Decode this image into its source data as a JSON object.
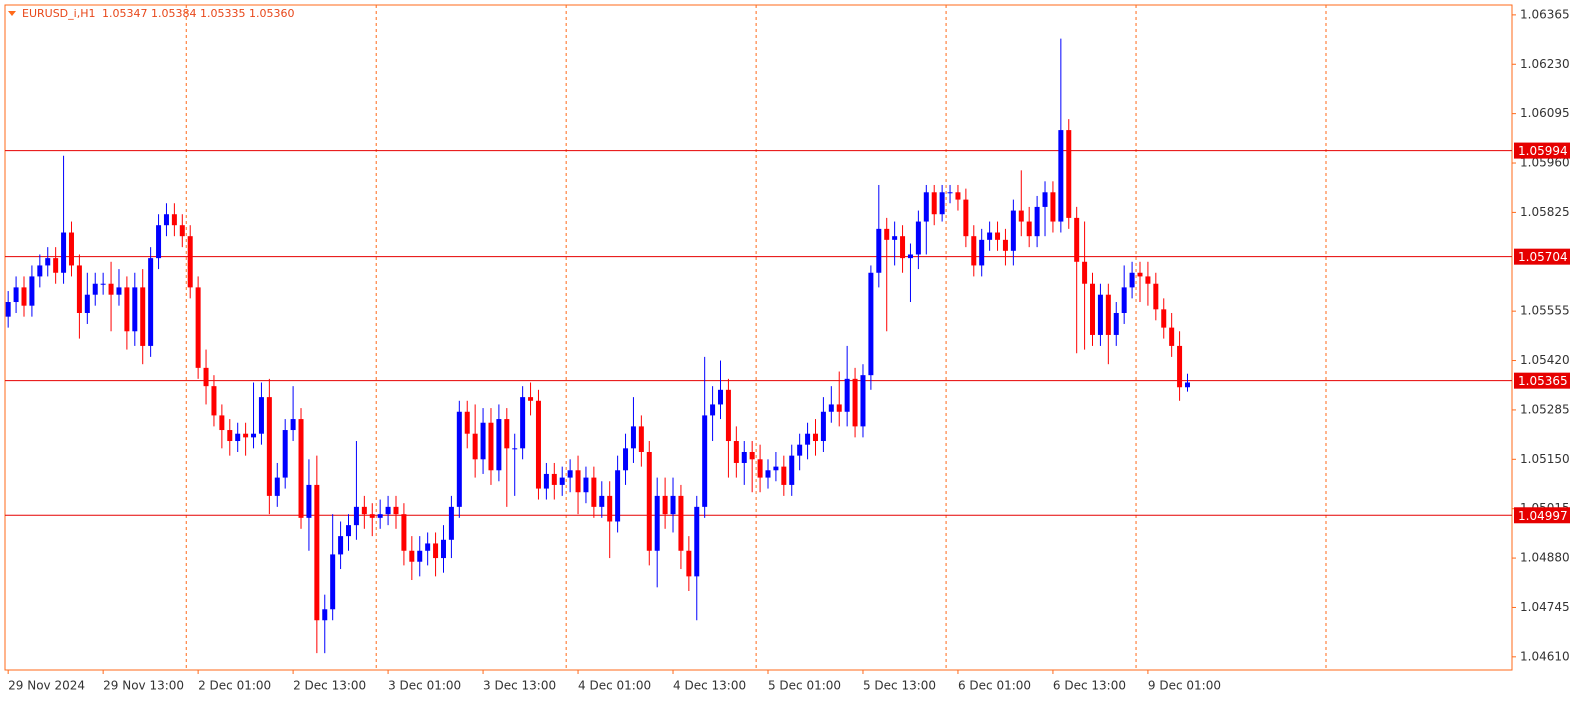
{
  "chart_data": {
    "type": "candlestick",
    "title": "EURUSD_i,H1",
    "ohlc_label": "1.05347 1.05384 1.05335 1.05360",
    "colors": {
      "up": "#0000ff",
      "down": "#ff0000",
      "frame": "#ff6a1a",
      "level": "#e60000"
    },
    "open": [
      1.0554,
      1.0558,
      1.0562,
      1.0557,
      1.0565,
      1.0568,
      1.057,
      1.0566,
      1.0577,
      1.0568,
      1.0555,
      1.056,
      1.0563,
      1.0563,
      1.056,
      1.0562,
      1.055,
      1.0562,
      1.0546,
      1.057,
      1.0579,
      1.0582,
      1.0579,
      1.0576,
      1.0562,
      1.054,
      1.0535,
      1.0527,
      1.0523,
      1.052,
      1.0522,
      1.0521,
      1.0522,
      1.0532,
      1.0505,
      1.051,
      1.0523,
      1.0526,
      1.0499,
      1.0508,
      1.0471,
      1.0474,
      1.0489,
      1.0494,
      1.0497,
      1.0502,
      1.05,
      1.0499,
      1.05,
      1.0502,
      1.05,
      1.049,
      1.0487,
      1.049,
      1.0492,
      1.0488,
      1.0493,
      1.0502,
      1.0528,
      1.0522,
      1.0515,
      1.0525,
      1.0512,
      1.0526,
      1.0518,
      1.0518,
      1.0532,
      1.0531,
      1.0507,
      1.0511,
      1.0508,
      1.051,
      1.0512,
      1.0506,
      1.051,
      1.0502,
      1.0505,
      1.0498,
      1.0512,
      1.0518,
      1.0524,
      1.0517,
      1.049,
      1.0505,
      1.05,
      1.0505,
      1.049,
      1.0483,
      1.0502,
      1.0527,
      1.053,
      1.0534,
      1.052,
      1.0514,
      1.0517,
      1.0515,
      1.051,
      1.0512,
      1.0513,
      1.0508,
      1.0516,
      1.0519,
      1.0522,
      1.052,
      1.0528,
      1.053,
      1.0528,
      1.0537,
      1.0524,
      1.0538,
      1.0566,
      1.0578,
      1.0575,
      1.0576,
      1.057,
      1.0571,
      1.058,
      1.0588,
      1.0582,
      1.0588,
      1.0588,
      1.0586,
      1.0576,
      1.0568,
      1.0575,
      1.0577,
      1.0575,
      1.0572,
      1.0583,
      1.058,
      1.0576,
      1.0584,
      1.0588,
      1.058,
      1.0605,
      1.0581,
      1.0569,
      1.0563,
      1.0549,
      1.056,
      1.0549,
      1.0555,
      1.0562,
      1.0566,
      1.0565,
      1.0563,
      1.0556,
      1.0551,
      1.0546,
      1.05347
    ],
    "high": [
      1.0561,
      1.0565,
      1.0565,
      1.0568,
      1.0571,
      1.0573,
      1.0573,
      1.0598,
      1.058,
      1.0571,
      1.0566,
      1.0566,
      1.0566,
      1.0569,
      1.0567,
      1.0565,
      1.0566,
      1.0567,
      1.0573,
      1.0582,
      1.0585,
      1.0585,
      1.0582,
      1.0579,
      1.0565,
      1.0545,
      1.0538,
      1.053,
      1.0526,
      1.0525,
      1.0525,
      1.0536,
      1.0536,
      1.0537,
      1.0514,
      1.0526,
      1.0535,
      1.0529,
      1.0515,
      1.0516,
      1.0478,
      1.05,
      1.0498,
      1.05,
      1.052,
      1.0505,
      1.0503,
      1.0504,
      1.0505,
      1.0505,
      1.0503,
      1.0494,
      1.0494,
      1.0495,
      1.0495,
      1.0497,
      1.0505,
      1.0531,
      1.0531,
      1.053,
      1.0529,
      1.0529,
      1.053,
      1.0529,
      1.0522,
      1.0535,
      1.0536,
      1.0534,
      1.0514,
      1.0514,
      1.0513,
      1.0515,
      1.0516,
      1.0513,
      1.0513,
      1.0509,
      1.0509,
      1.0516,
      1.0522,
      1.0532,
      1.0527,
      1.052,
      1.051,
      1.051,
      1.051,
      1.0508,
      1.0494,
      1.0505,
      1.0543,
      1.0535,
      1.0542,
      1.0537,
      1.0524,
      1.052,
      1.052,
      1.0519,
      1.0515,
      1.0517,
      1.0516,
      1.0519,
      1.0522,
      1.0525,
      1.0526,
      1.0532,
      1.0535,
      1.0539,
      1.0546,
      1.054,
      1.0541,
      1.0568,
      1.059,
      1.0581,
      1.058,
      1.0579,
      1.0574,
      1.0583,
      1.059,
      1.059,
      1.059,
      1.059,
      1.059,
      1.0589,
      1.0579,
      1.0578,
      1.058,
      1.058,
      1.0578,
      1.0586,
      1.0594,
      1.0584,
      1.0587,
      1.0591,
      1.0591,
      1.063,
      1.0608,
      1.0584,
      1.058,
      1.0566,
      1.0563,
      1.0563,
      1.0558,
      1.0568,
      1.0569,
      1.0569,
      1.0569,
      1.0566,
      1.0559,
      1.0555,
      1.055,
      1.05384
    ],
    "low": [
      1.0551,
      1.0555,
      1.0554,
      1.0554,
      1.0562,
      1.0565,
      1.0563,
      1.0563,
      1.0565,
      1.0548,
      1.0552,
      1.0557,
      1.056,
      1.055,
      1.0557,
      1.0545,
      1.0546,
      1.0541,
      1.0543,
      1.0567,
      1.0576,
      1.0576,
      1.0573,
      1.0559,
      1.0537,
      1.053,
      1.0524,
      1.0518,
      1.0516,
      1.0517,
      1.0516,
      1.0518,
      1.0519,
      1.05,
      1.0502,
      1.0507,
      1.052,
      1.0496,
      1.049,
      1.0462,
      1.0462,
      1.0471,
      1.0485,
      1.049,
      1.0493,
      1.0496,
      1.0494,
      1.0496,
      1.0497,
      1.0496,
      1.0486,
      1.0482,
      1.0483,
      1.0486,
      1.0483,
      1.0484,
      1.0488,
      1.0499,
      1.0518,
      1.051,
      1.0511,
      1.0508,
      1.0509,
      1.0502,
      1.0505,
      1.0515,
      1.0527,
      1.0504,
      1.0504,
      1.0504,
      1.0505,
      1.0506,
      1.05,
      1.0503,
      1.0499,
      1.0499,
      1.0488,
      1.0495,
      1.0508,
      1.0514,
      1.0513,
      1.0486,
      1.048,
      1.0496,
      1.0495,
      1.0485,
      1.0479,
      1.0471,
      1.0499,
      1.052,
      1.0526,
      1.051,
      1.051,
      1.0508,
      1.0506,
      1.0506,
      1.0507,
      1.0509,
      1.0505,
      1.0505,
      1.0512,
      1.0515,
      1.0516,
      1.0517,
      1.0525,
      1.0524,
      1.0524,
      1.0521,
      1.0521,
      1.0534,
      1.0562,
      1.055,
      1.0568,
      1.0566,
      1.0558,
      1.0567,
      1.0571,
      1.0579,
      1.058,
      1.0585,
      1.0583,
      1.0573,
      1.0565,
      1.0565,
      1.0572,
      1.0572,
      1.0568,
      1.0568,
      1.0576,
      1.0573,
      1.0573,
      1.0576,
      1.0577,
      1.0577,
      1.0578,
      1.0544,
      1.0545,
      1.0546,
      1.0546,
      1.0541,
      1.0546,
      1.0552,
      1.0559,
      1.0558,
      1.0557,
      1.0553,
      1.0548,
      1.0543,
      1.0531,
      1.05335
    ],
    "close": [
      1.0558,
      1.0562,
      1.0557,
      1.0565,
      1.0568,
      1.057,
      1.0566,
      1.0577,
      1.0568,
      1.0555,
      1.056,
      1.0563,
      1.0563,
      1.056,
      1.0562,
      1.055,
      1.0562,
      1.0546,
      1.057,
      1.0579,
      1.0582,
      1.0579,
      1.0576,
      1.0562,
      1.054,
      1.0535,
      1.0527,
      1.0523,
      1.052,
      1.0522,
      1.0521,
      1.0522,
      1.0532,
      1.0505,
      1.051,
      1.0523,
      1.0526,
      1.0499,
      1.0508,
      1.0471,
      1.0474,
      1.0489,
      1.0494,
      1.0497,
      1.0502,
      1.05,
      1.0499,
      1.05,
      1.0502,
      1.05,
      1.049,
      1.0487,
      1.049,
      1.0492,
      1.0488,
      1.0493,
      1.0502,
      1.0528,
      1.0522,
      1.0515,
      1.0525,
      1.0512,
      1.0526,
      1.0518,
      1.0518,
      1.0532,
      1.0531,
      1.0507,
      1.0511,
      1.0508,
      1.051,
      1.0512,
      1.0506,
      1.051,
      1.0502,
      1.0505,
      1.0498,
      1.0512,
      1.0518,
      1.0524,
      1.0517,
      1.049,
      1.0505,
      1.05,
      1.0505,
      1.049,
      1.0483,
      1.0502,
      1.0527,
      1.053,
      1.0534,
      1.052,
      1.0514,
      1.0517,
      1.0515,
      1.051,
      1.0512,
      1.0513,
      1.0508,
      1.0516,
      1.0519,
      1.0522,
      1.052,
      1.0528,
      1.053,
      1.0528,
      1.0537,
      1.0524,
      1.0538,
      1.0566,
      1.0578,
      1.0575,
      1.0576,
      1.057,
      1.0571,
      1.058,
      1.0588,
      1.0582,
      1.0588,
      1.0588,
      1.0586,
      1.0576,
      1.0568,
      1.0575,
      1.0577,
      1.0575,
      1.0572,
      1.0583,
      1.058,
      1.0576,
      1.0584,
      1.0588,
      1.058,
      1.0605,
      1.0581,
      1.0569,
      1.0563,
      1.0549,
      1.056,
      1.0549,
      1.0555,
      1.0562,
      1.0566,
      1.0565,
      1.0563,
      1.0556,
      1.0551,
      1.0546,
      1.05347,
      1.0536
    ],
    "levels": [
      1.05994,
      1.05704,
      1.05365,
      1.04997
    ],
    "xlim": [
      -0.4,
      190
    ],
    "xticks": [
      {
        "value": 0,
        "label": "29 Nov 2024"
      },
      {
        "value": 12,
        "label": "29 Nov 13:00"
      },
      {
        "value": 24,
        "label": "2 Dec 01:00"
      },
      {
        "value": 36,
        "label": "2 Dec 13:00"
      },
      {
        "value": 48,
        "label": "3 Dec 01:00"
      },
      {
        "value": 60,
        "label": "3 Dec 13:00"
      },
      {
        "value": 72,
        "label": "4 Dec 01:00"
      },
      {
        "value": 84,
        "label": "4 Dec 13:00"
      },
      {
        "value": 96,
        "label": "5 Dec 01:00"
      },
      {
        "value": 108,
        "label": "5 Dec 13:00"
      },
      {
        "value": 120,
        "label": "6 Dec 01:00"
      },
      {
        "value": 132,
        "label": "6 Dec 13:00"
      },
      {
        "value": 144,
        "label": "9 Dec 01:00"
      }
    ],
    "ylim": [
      1.04574,
      1.06392
    ],
    "yticks": [
      1.06365,
      {
        "value": 1.0623,
        "label": "1.06230"
      },
      1.06095,
      {
        "value": 1.0596,
        "label": "1.05960"
      },
      1.05825,
      1.05555,
      {
        "value": 1.0542,
        "label": "1.05420"
      },
      1.05285,
      {
        "value": 1.0515,
        "label": "1.05150"
      },
      1.05015,
      {
        "value": 1.0488,
        "label": "1.04880"
      },
      1.04745,
      {
        "value": 1.0461,
        "label": "1.04610"
      }
    ]
  }
}
